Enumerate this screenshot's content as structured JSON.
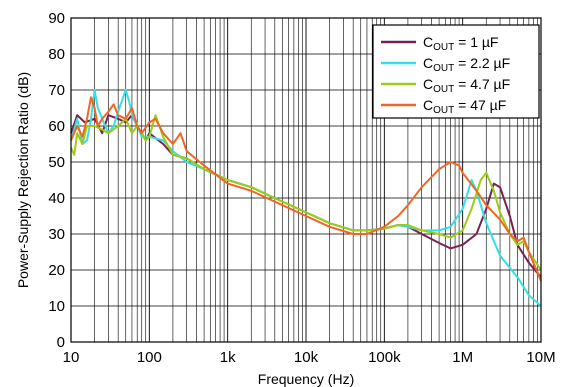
{
  "chart_data": {
    "type": "line",
    "title": "",
    "xlabel": "Frequency (Hz)",
    "ylabel": "Power-Supply Rejection Ratio (dB)",
    "x_scale": "log",
    "xlim": [
      10,
      10000000
    ],
    "ylim": [
      0,
      90
    ],
    "grid": true,
    "legend_position": "top-right",
    "x_ticks": [
      {
        "value": 10,
        "label": "10"
      },
      {
        "value": 100,
        "label": "100"
      },
      {
        "value": 1000,
        "label": "1k"
      },
      {
        "value": 10000,
        "label": "10k"
      },
      {
        "value": 100000,
        "label": "100k"
      },
      {
        "value": 1000000,
        "label": "1M"
      },
      {
        "value": 10000000,
        "label": "10M"
      }
    ],
    "y_ticks": [
      0,
      10,
      20,
      30,
      40,
      50,
      60,
      70,
      80,
      90
    ],
    "series": [
      {
        "name": "C_OUT = 1 µF",
        "label_main": "C",
        "label_sub": "OUT",
        "label_rest": " = 1 µF",
        "color": "#7b2150",
        "points": [
          [
            10,
            58
          ],
          [
            12,
            63
          ],
          [
            15,
            61
          ],
          [
            20,
            62
          ],
          [
            25,
            58
          ],
          [
            30,
            63
          ],
          [
            40,
            62
          ],
          [
            50,
            61
          ],
          [
            60,
            63
          ],
          [
            70,
            60
          ],
          [
            80,
            58
          ],
          [
            90,
            56
          ],
          [
            100,
            58
          ],
          [
            150,
            55
          ],
          [
            200,
            52
          ],
          [
            300,
            51
          ],
          [
            500,
            48
          ],
          [
            1000,
            45
          ],
          [
            2000,
            43
          ],
          [
            5000,
            39
          ],
          [
            10000,
            36
          ],
          [
            20000,
            33
          ],
          [
            40000,
            31
          ],
          [
            60000,
            31
          ],
          [
            100000,
            31.5
          ],
          [
            150000,
            32.5
          ],
          [
            200000,
            32
          ],
          [
            300000,
            30
          ],
          [
            500000,
            27.5
          ],
          [
            700000,
            26
          ],
          [
            1000000,
            27
          ],
          [
            1500000,
            30
          ],
          [
            2000000,
            37
          ],
          [
            2500000,
            44
          ],
          [
            3000000,
            43
          ],
          [
            4000000,
            35
          ],
          [
            5000000,
            27
          ],
          [
            7000000,
            22
          ],
          [
            10000000,
            18
          ]
        ]
      },
      {
        "name": "C_OUT = 2.2 µF",
        "label_main": "C",
        "label_sub": "OUT",
        "label_rest": " = 2.2 µF",
        "color": "#33e0e6",
        "points": [
          [
            10,
            56
          ],
          [
            12,
            62
          ],
          [
            14,
            55
          ],
          [
            16,
            56
          ],
          [
            18,
            62
          ],
          [
            20,
            70
          ],
          [
            22,
            65
          ],
          [
            25,
            62
          ],
          [
            30,
            58
          ],
          [
            35,
            60
          ],
          [
            40,
            64
          ],
          [
            50,
            70
          ],
          [
            55,
            67
          ],
          [
            60,
            63
          ],
          [
            70,
            60
          ],
          [
            80,
            57
          ],
          [
            100,
            57
          ],
          [
            150,
            56
          ],
          [
            200,
            53
          ],
          [
            300,
            50
          ],
          [
            500,
            48
          ],
          [
            1000,
            45
          ],
          [
            2000,
            43
          ],
          [
            5000,
            39
          ],
          [
            10000,
            36
          ],
          [
            20000,
            33
          ],
          [
            40000,
            31
          ],
          [
            60000,
            31
          ],
          [
            100000,
            31.5
          ],
          [
            150000,
            32.5
          ],
          [
            200000,
            32
          ],
          [
            300000,
            31
          ],
          [
            500000,
            31
          ],
          [
            700000,
            32
          ],
          [
            1000000,
            37
          ],
          [
            1300000,
            45
          ],
          [
            1500000,
            42
          ],
          [
            2000000,
            33
          ],
          [
            3000000,
            24
          ],
          [
            5000000,
            18
          ],
          [
            7000000,
            13
          ],
          [
            10000000,
            10
          ]
        ]
      },
      {
        "name": "C_OUT = 4.7 µF",
        "label_main": "C",
        "label_sub": "OUT",
        "label_rest": " = 4.7 µF",
        "color": "#9ccc14",
        "points": [
          [
            10,
            54
          ],
          [
            11,
            52
          ],
          [
            12,
            58
          ],
          [
            14,
            55
          ],
          [
            16,
            60
          ],
          [
            20,
            60
          ],
          [
            25,
            59
          ],
          [
            30,
            58
          ],
          [
            40,
            60
          ],
          [
            50,
            62
          ],
          [
            60,
            58
          ],
          [
            70,
            60
          ],
          [
            80,
            58
          ],
          [
            90,
            56
          ],
          [
            100,
            57
          ],
          [
            120,
            63
          ],
          [
            150,
            57
          ],
          [
            200,
            52
          ],
          [
            300,
            51
          ],
          [
            500,
            48
          ],
          [
            1000,
            45
          ],
          [
            2000,
            43
          ],
          [
            5000,
            39
          ],
          [
            10000,
            36
          ],
          [
            20000,
            33
          ],
          [
            40000,
            31
          ],
          [
            60000,
            31
          ],
          [
            100000,
            31.5
          ],
          [
            150000,
            32.5
          ],
          [
            200000,
            32.5
          ],
          [
            300000,
            31
          ],
          [
            500000,
            30
          ],
          [
            700000,
            29
          ],
          [
            1000000,
            31
          ],
          [
            1300000,
            37
          ],
          [
            1700000,
            45
          ],
          [
            2000000,
            47
          ],
          [
            2500000,
            42
          ],
          [
            3000000,
            36
          ],
          [
            4000000,
            30
          ],
          [
            5000000,
            27
          ],
          [
            6000000,
            28
          ],
          [
            7000000,
            25
          ],
          [
            10000000,
            20
          ]
        ]
      },
      {
        "name": "C_OUT = 47 µF",
        "label_main": "C",
        "label_sub": "OUT",
        "label_rest": " = 47 µF",
        "color": "#f26522",
        "points": [
          [
            10,
            56
          ],
          [
            12,
            60
          ],
          [
            14,
            57
          ],
          [
            16,
            62
          ],
          [
            18,
            68
          ],
          [
            20,
            65
          ],
          [
            22,
            60
          ],
          [
            25,
            62
          ],
          [
            30,
            64
          ],
          [
            35,
            66
          ],
          [
            40,
            63
          ],
          [
            50,
            62
          ],
          [
            60,
            65
          ],
          [
            70,
            60
          ],
          [
            80,
            58
          ],
          [
            100,
            61
          ],
          [
            120,
            62
          ],
          [
            150,
            58
          ],
          [
            200,
            55
          ],
          [
            250,
            58
          ],
          [
            300,
            53
          ],
          [
            500,
            49
          ],
          [
            1000,
            44
          ],
          [
            2000,
            42
          ],
          [
            5000,
            38
          ],
          [
            10000,
            35
          ],
          [
            20000,
            32
          ],
          [
            40000,
            30
          ],
          [
            60000,
            30
          ],
          [
            100000,
            32
          ],
          [
            150000,
            35
          ],
          [
            200000,
            38
          ],
          [
            300000,
            43
          ],
          [
            500000,
            48
          ],
          [
            700000,
            50
          ],
          [
            900000,
            49
          ],
          [
            1000000,
            47
          ],
          [
            1500000,
            42
          ],
          [
            2000000,
            38
          ],
          [
            3000000,
            34
          ],
          [
            4000000,
            30
          ],
          [
            5000000,
            28
          ],
          [
            6000000,
            29
          ],
          [
            7000000,
            25
          ],
          [
            10000000,
            17
          ]
        ]
      }
    ]
  }
}
